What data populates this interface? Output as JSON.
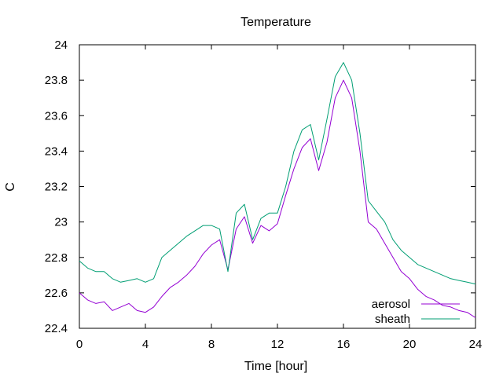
{
  "chart_data": {
    "type": "line",
    "title": "Temperature",
    "xlabel": "Time [hour]",
    "ylabel": "C",
    "xlim": [
      0,
      24
    ],
    "ylim": [
      22.4,
      24.0
    ],
    "x_ticks": [
      0,
      4,
      8,
      12,
      16,
      20,
      24
    ],
    "x_tick_labels": [
      "0",
      "4",
      "8",
      "12",
      "16",
      "20",
      "24"
    ],
    "y_ticks": [
      22.4,
      22.6,
      22.8,
      23.0,
      23.2,
      23.4,
      23.6,
      23.8,
      24.0
    ],
    "y_tick_labels": [
      "22.4",
      "22.6",
      "22.8",
      "23",
      "23.2",
      "23.4",
      "23.6",
      "23.8",
      "24"
    ],
    "grid": false,
    "legend_position": "bottom-right",
    "series": [
      {
        "name": "aerosol",
        "color": "#9400d3",
        "x": [
          0,
          0.5,
          1,
          1.5,
          2,
          2.5,
          3,
          3.5,
          4,
          4.5,
          5,
          5.5,
          6,
          6.5,
          7,
          7.5,
          8,
          8.5,
          9,
          9.5,
          10,
          10.5,
          11,
          11.5,
          12,
          12.5,
          13,
          13.5,
          14,
          14.5,
          15,
          15.5,
          16,
          16.5,
          17,
          17.5,
          18,
          18.5,
          19,
          19.5,
          20,
          20.5,
          21,
          21.5,
          22,
          22.5,
          23,
          23.5,
          24
        ],
        "y": [
          22.6,
          22.56,
          22.54,
          22.55,
          22.5,
          22.52,
          22.54,
          22.5,
          22.49,
          22.52,
          22.58,
          22.63,
          22.66,
          22.7,
          22.75,
          22.82,
          22.87,
          22.9,
          22.73,
          22.96,
          23.03,
          22.88,
          22.98,
          22.95,
          22.99,
          23.15,
          23.3,
          23.42,
          23.47,
          23.29,
          23.45,
          23.7,
          23.8,
          23.7,
          23.4,
          23.0,
          22.96,
          22.88,
          22.8,
          22.72,
          22.68,
          22.62,
          22.58,
          22.56,
          22.53,
          22.52,
          22.5,
          22.49,
          22.46
        ]
      },
      {
        "name": "sheath",
        "color": "#009e73",
        "x": [
          0,
          0.5,
          1,
          1.5,
          2,
          2.5,
          3,
          3.5,
          4,
          4.5,
          5,
          5.5,
          6,
          6.5,
          7,
          7.5,
          8,
          8.5,
          9,
          9.5,
          10,
          10.5,
          11,
          11.5,
          12,
          12.5,
          13,
          13.5,
          14,
          14.5,
          15,
          15.5,
          16,
          16.5,
          17,
          17.5,
          18,
          18.5,
          19,
          19.5,
          20,
          20.5,
          21,
          21.5,
          22,
          22.5,
          23,
          23.5,
          24
        ],
        "y": [
          22.78,
          22.74,
          22.72,
          22.72,
          22.68,
          22.66,
          22.67,
          22.68,
          22.66,
          22.68,
          22.8,
          22.84,
          22.88,
          22.92,
          22.95,
          22.98,
          22.98,
          22.96,
          22.72,
          23.05,
          23.1,
          22.9,
          23.02,
          23.05,
          23.05,
          23.2,
          23.4,
          23.52,
          23.55,
          23.35,
          23.58,
          23.82,
          23.9,
          23.8,
          23.5,
          23.12,
          23.06,
          23.0,
          22.9,
          22.84,
          22.8,
          22.76,
          22.74,
          22.72,
          22.7,
          22.68,
          22.67,
          22.66,
          22.65
        ]
      }
    ]
  }
}
